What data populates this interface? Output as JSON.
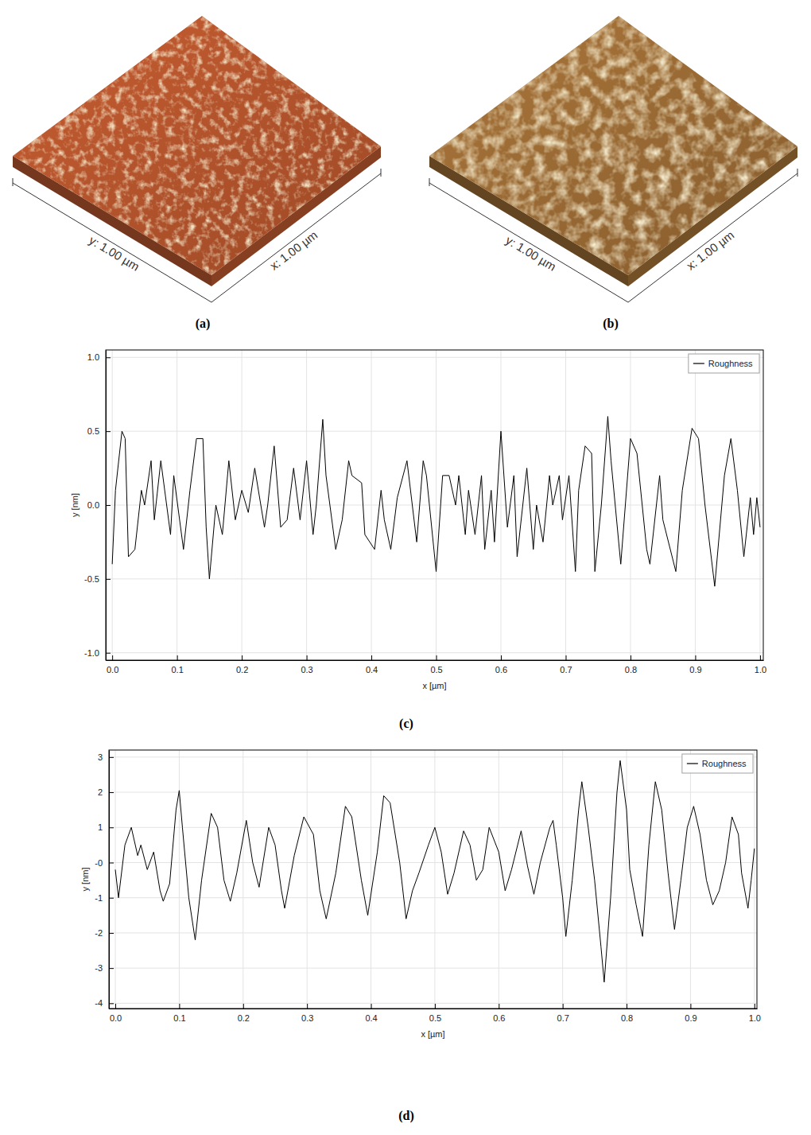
{
  "chart_data": [
    {
      "type": "surface",
      "label": "(a)",
      "xlabel": "x: 1.00 µm",
      "ylabel": "y: 1.00 µm",
      "color": "#b4542c"
    },
    {
      "type": "surface",
      "label": "(b)",
      "xlabel": "x: 1.00 µm",
      "ylabel": "y: 1.00 µm",
      "color": "#9a6a34"
    },
    {
      "type": "line",
      "label": "(c)",
      "xlabel": "x [µm]",
      "ylabel": "y [nm]",
      "x": [
        0,
        0.005,
        0.015,
        0.02,
        0.025,
        0.035,
        0.045,
        0.05,
        0.06,
        0.065,
        0.075,
        0.09,
        0.095,
        0.11,
        0.12,
        0.13,
        0.14,
        0.145,
        0.15,
        0.16,
        0.17,
        0.18,
        0.19,
        0.2,
        0.21,
        0.22,
        0.235,
        0.24,
        0.25,
        0.26,
        0.27,
        0.28,
        0.29,
        0.3,
        0.31,
        0.315,
        0.325,
        0.33,
        0.345,
        0.355,
        0.365,
        0.37,
        0.385,
        0.39,
        0.405,
        0.415,
        0.42,
        0.43,
        0.44,
        0.455,
        0.47,
        0.48,
        0.485,
        0.5,
        0.51,
        0.52,
        0.53,
        0.535,
        0.545,
        0.55,
        0.56,
        0.57,
        0.575,
        0.585,
        0.59,
        0.6,
        0.61,
        0.62,
        0.625,
        0.64,
        0.65,
        0.655,
        0.665,
        0.675,
        0.68,
        0.69,
        0.695,
        0.705,
        0.715,
        0.72,
        0.73,
        0.74,
        0.745,
        0.755,
        0.765,
        0.77,
        0.785,
        0.8,
        0.81,
        0.825,
        0.83,
        0.845,
        0.85,
        0.87,
        0.88,
        0.895,
        0.905,
        0.915,
        0.93,
        0.945,
        0.955,
        0.965,
        0.975,
        0.985,
        0.99,
        0.995,
        1.0
      ],
      "series": [
        {
          "name": "Roughness",
          "color": "#000000",
          "values": [
            -0.4,
            0.1,
            0.5,
            0.45,
            -0.35,
            -0.3,
            0.1,
            0,
            0.3,
            -0.1,
            0.3,
            -0.2,
            0.2,
            -0.3,
            0.1,
            0.45,
            0.45,
            -0.15,
            -0.5,
            0,
            -0.2,
            0.3,
            -0.1,
            0.1,
            -0.05,
            0.25,
            -0.15,
            0,
            0.4,
            -0.15,
            -0.1,
            0.25,
            -0.1,
            0.3,
            -0.2,
            0,
            0.58,
            0.2,
            -0.3,
            -0.1,
            0.3,
            0.2,
            0.15,
            -0.2,
            -0.3,
            0.1,
            -0.1,
            -0.3,
            0.05,
            0.3,
            -0.25,
            0.3,
            0.2,
            -0.45,
            0.2,
            0.2,
            0,
            0.2,
            -0.2,
            0.1,
            -0.2,
            0.2,
            -0.3,
            0.1,
            -0.25,
            0.5,
            -0.15,
            0.2,
            -0.35,
            0.25,
            -0.3,
            0,
            -0.25,
            0.2,
            0,
            0.2,
            -0.1,
            0.2,
            -0.45,
            0.1,
            0.4,
            0.35,
            -0.45,
            0,
            0.6,
            0.3,
            -0.4,
            0.45,
            0.35,
            -0.3,
            -0.4,
            0.2,
            -0.1,
            -0.45,
            0.1,
            0.52,
            0.45,
            0,
            -0.55,
            0.2,
            0.45,
            0.1,
            -0.35,
            0.05,
            -0.2,
            0.05,
            -0.15
          ]
        }
      ],
      "xlim": [
        -0.01,
        1.005
      ],
      "ylim": [
        -1.05,
        1.05
      ],
      "xticks": [
        {
          "value": 0,
          "label": "0.0"
        },
        0.1,
        0.2,
        0.3,
        0.4,
        0.5,
        0.6,
        0.7,
        0.8,
        0.9,
        {
          "value": 1,
          "label": "1.0"
        }
      ],
      "yticks": [
        {
          "value": -1,
          "label": "-1.0"
        },
        -0.5,
        {
          "value": 0,
          "label": "0.0"
        },
        0.5,
        {
          "value": 1,
          "label": "1.0"
        }
      ],
      "grid": true,
      "legend": "upper right"
    },
    {
      "type": "line",
      "label": "(d)",
      "xlabel": "x [µm]",
      "ylabel": "y [nm]",
      "x": [
        0,
        0.005,
        0.015,
        0.025,
        0.035,
        0.04,
        0.05,
        0.06,
        0.07,
        0.075,
        0.085,
        0.095,
        0.1,
        0.105,
        0.115,
        0.125,
        0.135,
        0.15,
        0.16,
        0.17,
        0.18,
        0.19,
        0.205,
        0.215,
        0.225,
        0.24,
        0.25,
        0.26,
        0.265,
        0.28,
        0.295,
        0.31,
        0.32,
        0.33,
        0.345,
        0.36,
        0.37,
        0.385,
        0.395,
        0.41,
        0.42,
        0.43,
        0.445,
        0.455,
        0.465,
        0.475,
        0.49,
        0.5,
        0.51,
        0.52,
        0.53,
        0.545,
        0.555,
        0.565,
        0.575,
        0.585,
        0.6,
        0.61,
        0.62,
        0.635,
        0.645,
        0.655,
        0.665,
        0.68,
        0.685,
        0.69,
        0.7,
        0.705,
        0.715,
        0.725,
        0.73,
        0.74,
        0.75,
        0.76,
        0.765,
        0.775,
        0.785,
        0.79,
        0.8,
        0.805,
        0.815,
        0.825,
        0.835,
        0.845,
        0.855,
        0.865,
        0.875,
        0.885,
        0.895,
        0.905,
        0.915,
        0.925,
        0.935,
        0.945,
        0.955,
        0.965,
        0.975,
        0.98,
        0.99,
        0.995,
        1.0
      ],
      "series": [
        {
          "name": "Roughness",
          "color": "#000000",
          "values": [
            -0.2,
            -1.0,
            0.5,
            1.0,
            0.2,
            0.5,
            -0.2,
            0.3,
            -0.8,
            -1.1,
            -0.6,
            1.5,
            2.05,
            1.0,
            -1.0,
            -2.2,
            -0.5,
            1.4,
            1.0,
            -0.5,
            -1.1,
            -0.3,
            1.2,
            0,
            -0.7,
            1.0,
            0.5,
            -0.8,
            -1.3,
            0.2,
            1.3,
            0.8,
            -0.8,
            -1.6,
            -0.3,
            1.6,
            1.3,
            -0.5,
            -1.5,
            0.3,
            1.9,
            1.7,
            0,
            -1.6,
            -0.8,
            -0.3,
            0.5,
            1.0,
            0.3,
            -0.9,
            -0.3,
            0.9,
            0.5,
            -0.5,
            -0.2,
            1.0,
            0.3,
            -0.8,
            -0.2,
            0.9,
            -0.1,
            -0.9,
            0,
            1.0,
            1.2,
            0.5,
            -1.0,
            -2.1,
            -0.5,
            1.5,
            2.3,
            1.0,
            -0.5,
            -2.4,
            -3.4,
            -1.0,
            2.0,
            2.9,
            1.5,
            -0.2,
            -1.2,
            -2.1,
            0.5,
            2.3,
            1.5,
            -0.3,
            -1.9,
            -0.5,
            1.0,
            1.6,
            0.8,
            -0.5,
            -1.2,
            -0.8,
            0,
            1.3,
            0.8,
            -0.3,
            -1.3,
            -0.5,
            0.4
          ]
        }
      ],
      "xlim": [
        -0.01,
        1.004
      ],
      "ylim": [
        -4.15,
        3.2
      ],
      "xticks": [
        {
          "value": 0,
          "label": "0.0"
        },
        0.1,
        0.2,
        0.3,
        0.4,
        0.5,
        0.6,
        0.7,
        0.8,
        0.9,
        {
          "value": 1,
          "label": "1.0"
        }
      ],
      "yticks": [
        -4,
        -3,
        -2,
        -1,
        {
          "value": 0,
          "label": "-0"
        },
        1,
        2,
        3
      ],
      "grid": true,
      "legend": "upper right"
    }
  ]
}
